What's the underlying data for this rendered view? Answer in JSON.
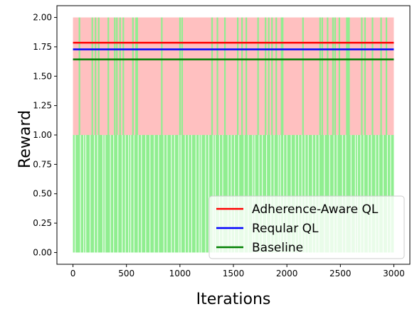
{
  "chart_data": {
    "type": "line",
    "xlabel": "Iterations",
    "ylabel": "Reward",
    "xlim": [
      -150,
      3150
    ],
    "ylim": [
      -0.1,
      2.1
    ],
    "xticks": [
      0,
      500,
      1000,
      1500,
      2000,
      2500,
      3000
    ],
    "yticks": [
      0.0,
      0.25,
      0.5,
      0.75,
      1.0,
      1.25,
      1.5,
      1.75,
      2.0
    ],
    "xtick_labels": [
      "0",
      "500",
      "1000",
      "1500",
      "2000",
      "2500",
      "3000"
    ],
    "ytick_labels": [
      "0.00",
      "0.25",
      "0.50",
      "0.75",
      "1.00",
      "1.25",
      "1.50",
      "1.75",
      "2.00"
    ],
    "grid": false,
    "legend_position": "lower-right",
    "background_bands": {
      "x_range": [
        0,
        3000
      ],
      "upper": {
        "y": [
          1.0,
          2.0
        ],
        "color": "#ffc0c0"
      },
      "lower": {
        "y": [
          0.0,
          1.0
        ],
        "color": "#90ee90"
      },
      "spike_color": "#90ee90",
      "gap_color": "#ffffff",
      "spikes_to_2": [
        60,
        180,
        210,
        240,
        330,
        390,
        410,
        440,
        470,
        560,
        590,
        600,
        830,
        1000,
        1020,
        1300,
        1350,
        1420,
        1540,
        1580,
        1620,
        1730,
        1800,
        1830,
        1860,
        1900,
        1950,
        1960,
        2150,
        2310,
        2330,
        2380,
        2430,
        2450,
        2490,
        2560,
        2570,
        2580,
        2700,
        2730,
        2800,
        2880,
        2930
      ],
      "gaps": [
        20,
        70,
        100,
        120,
        160,
        200,
        230,
        280,
        300,
        350,
        380,
        420,
        460,
        490,
        520,
        540,
        570,
        610,
        640,
        680,
        720,
        760,
        800,
        850,
        880,
        920,
        950,
        990,
        1010,
        1050,
        1080,
        1110,
        1150,
        1180,
        1200,
        1240,
        1270,
        1310,
        1330,
        1370,
        1400,
        1450,
        1480,
        1510,
        1550,
        1600,
        1640,
        1680,
        1700,
        1740,
        1770,
        1810,
        1850,
        1880,
        1920,
        1940,
        1970,
        2000,
        2040,
        2080,
        2110,
        2140,
        2170,
        2200,
        2240,
        2270,
        2300,
        2350,
        2400,
        2440,
        2470,
        2520,
        2550,
        2600,
        2640,
        2660,
        2690,
        2720,
        2760,
        2790,
        2830,
        2860,
        2900,
        2940,
        2970
      ]
    },
    "series": [
      {
        "name": "Adherence-Aware QL",
        "color": "#ff0000",
        "x": [
          0,
          3000
        ],
        "y": [
          1.785,
          1.785
        ]
      },
      {
        "name": "Reqular QL",
        "color": "#0000ff",
        "x": [
          0,
          3000
        ],
        "y": [
          1.728,
          1.728
        ]
      },
      {
        "name": "Baseline",
        "color": "#008000",
        "x": [
          0,
          3000
        ],
        "y": [
          1.643,
          1.643
        ]
      }
    ]
  }
}
